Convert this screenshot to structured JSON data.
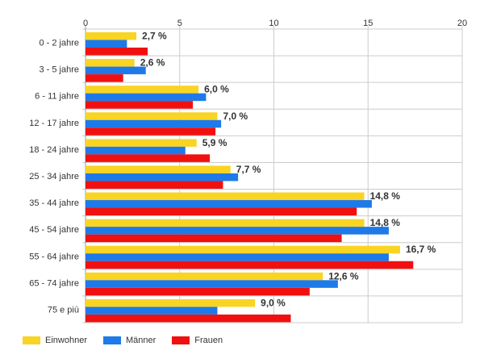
{
  "chart_data": {
    "type": "bar",
    "orientation": "horizontal",
    "categories": [
      "0 - 2 jahre",
      "3 - 5 jahre",
      "6 - 11 jahre",
      "12 - 17 jahre",
      "18 - 24 jahre",
      "25 - 34 jahre",
      "35 - 44 jahre",
      "45 - 54 jahre",
      "55 - 64 jahre",
      "65 - 74 jahre",
      "75 e più"
    ],
    "series": [
      {
        "name": "Einwohner",
        "color": "#f9d423",
        "values": [
          2.7,
          2.6,
          6.0,
          7.0,
          5.9,
          7.7,
          14.8,
          14.8,
          16.7,
          12.6,
          9.0
        ]
      },
      {
        "name": "Männer",
        "color": "#1e7ae8",
        "values": [
          2.2,
          3.2,
          6.4,
          7.2,
          5.3,
          8.1,
          15.2,
          16.1,
          16.1,
          13.4,
          7.0
        ]
      },
      {
        "name": "Frauen",
        "color": "#f01010",
        "values": [
          3.3,
          2.0,
          5.7,
          6.9,
          6.6,
          7.3,
          14.4,
          13.6,
          17.4,
          11.9,
          10.9
        ]
      }
    ],
    "data_labels": [
      "2,7 %",
      "2,6 %",
      "6,0 %",
      "7,0 %",
      "5,9 %",
      "7,7 %",
      "14,8 %",
      "14,8 %",
      "16,7 %",
      "12,6 %",
      "9,0 %"
    ],
    "xlim": [
      0,
      20
    ],
    "xticks": [
      0,
      5,
      10,
      15,
      20
    ],
    "xtick_labels": [
      "0",
      "5",
      "10",
      "15",
      "20"
    ],
    "x_axis_position": "top",
    "grid": true,
    "legend_position": "bottom-left"
  }
}
